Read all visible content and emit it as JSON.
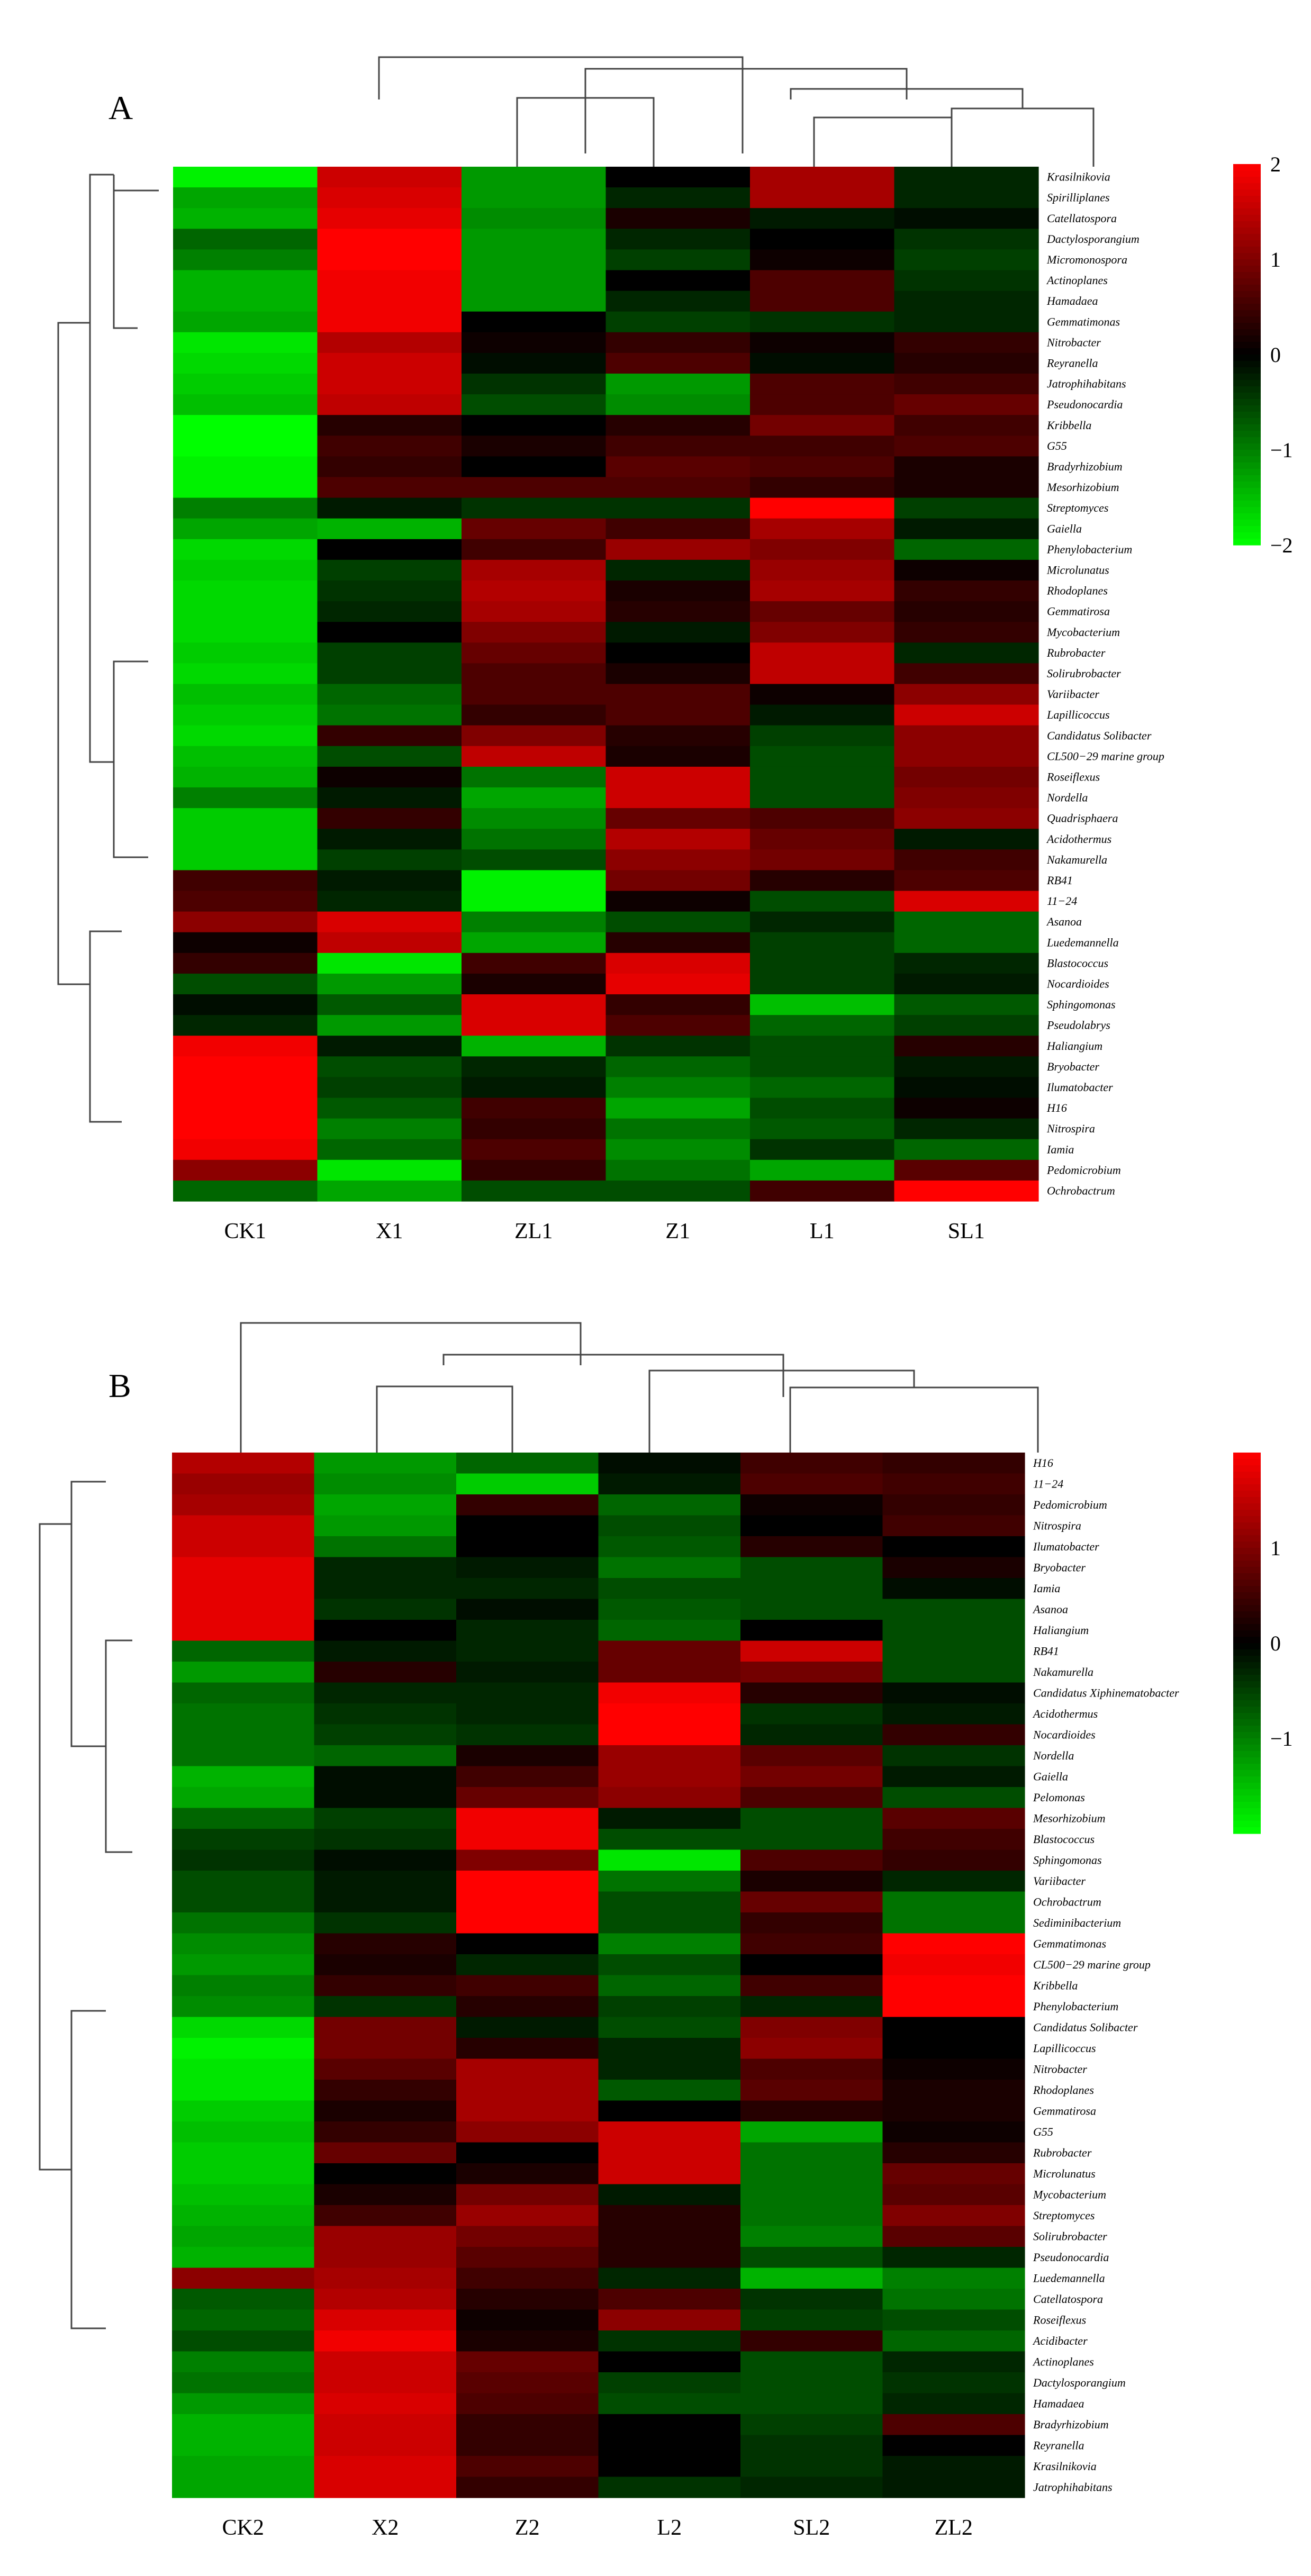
{
  "chart_data": [
    {
      "panel": "A",
      "type": "heatmap",
      "columns": [
        "CK1",
        "X1",
        "ZL1",
        "Z1",
        "L1",
        "SL1"
      ],
      "rows": [
        "Krasilnikovia",
        "Spirilliplanes",
        "Catellatospora",
        "Dactylosporangium",
        "Micromonospora",
        "Actinoplanes",
        "Hamadaea",
        "Gemmatimonas",
        "Nitrobacter",
        "Reyranella",
        "Jatrophihabitans",
        "Pseudonocardia",
        "Kribbella",
        "G55",
        "Bradyrhizobium",
        "Mesorhizobium",
        "Streptomyces",
        "Gaiella",
        "Phenylobacterium",
        "Microlunatus",
        "Rhodoplanes",
        "Gemmatirosa",
        "Mycobacterium",
        "Rubrobacter",
        "Solirubrobacter",
        "Variibacter",
        "Lapillicoccus",
        "Candidatus Solibacter",
        "CL500−29 marine group",
        "Roseiflexus",
        "Nordella",
        "Quadrisphaera",
        "Acidothermus",
        "Nakamurella",
        "RB41",
        "11−24",
        "Asanoa",
        "Luedemannella",
        "Blastococcus",
        "Nocardioides",
        "Sphingomonas",
        "Pseudolabrys",
        "Haliangium",
        "Bryobacter",
        "Ilumatobacter",
        "H16",
        "Nitrospira",
        "Iamia",
        "Pedomicrobium",
        "Ochrobactrum"
      ],
      "values": [
        [
          -1.9,
          1.6,
          -1.2,
          0.0,
          1.3,
          -0.3
        ],
        [
          -1.3,
          1.7,
          -1.2,
          -0.3,
          1.3,
          -0.3
        ],
        [
          -1.4,
          1.8,
          -1.1,
          0.2,
          -0.2,
          -0.1
        ],
        [
          -0.8,
          2.0,
          -1.2,
          -0.3,
          0.0,
          -0.4
        ],
        [
          -1.0,
          2.0,
          -1.2,
          -0.5,
          0.1,
          -0.5
        ],
        [
          -1.4,
          1.9,
          -1.2,
          0.0,
          0.6,
          -0.4
        ],
        [
          -1.4,
          1.9,
          -1.2,
          -0.3,
          0.6,
          -0.3
        ],
        [
          -1.3,
          1.9,
          0.0,
          -0.5,
          -0.4,
          -0.3
        ],
        [
          -1.8,
          1.4,
          0.1,
          0.4,
          0.1,
          0.4
        ],
        [
          -1.7,
          1.6,
          -0.1,
          0.6,
          -0.1,
          0.3
        ],
        [
          -1.6,
          1.6,
          -0.4,
          -1.2,
          0.6,
          0.5
        ],
        [
          -1.5,
          1.5,
          -0.6,
          -1.1,
          0.6,
          0.8
        ],
        [
          -2.0,
          0.3,
          0.0,
          0.3,
          0.9,
          0.5
        ],
        [
          -2.0,
          0.5,
          0.2,
          0.5,
          0.5,
          0.6
        ],
        [
          -1.9,
          0.4,
          0.0,
          0.7,
          0.6,
          0.2
        ],
        [
          -1.9,
          0.6,
          0.6,
          0.6,
          0.4,
          0.2
        ],
        [
          -1.0,
          -0.2,
          -0.4,
          -0.4,
          2.0,
          -0.5
        ],
        [
          -1.3,
          -1.4,
          0.8,
          0.5,
          1.3,
          -0.2
        ],
        [
          -1.7,
          0.0,
          0.5,
          1.2,
          1.0,
          -0.8
        ],
        [
          -1.6,
          -0.5,
          1.3,
          -0.3,
          1.2,
          0.1
        ],
        [
          -1.7,
          -0.4,
          1.4,
          0.2,
          1.3,
          0.4
        ],
        [
          -1.7,
          -0.3,
          1.3,
          0.3,
          0.8,
          0.3
        ],
        [
          -1.7,
          0.0,
          1.0,
          -0.2,
          1.0,
          0.4
        ],
        [
          -1.6,
          -0.5,
          0.8,
          0.0,
          1.5,
          -0.3
        ],
        [
          -1.7,
          -0.5,
          0.6,
          0.2,
          1.5,
          0.5
        ],
        [
          -1.5,
          -0.8,
          0.6,
          0.6,
          0.1,
          1.1
        ],
        [
          -1.6,
          -0.9,
          0.4,
          0.6,
          -0.2,
          1.6
        ],
        [
          -1.7,
          0.4,
          1.0,
          0.3,
          -0.5,
          1.1
        ],
        [
          -1.5,
          -0.6,
          1.5,
          0.2,
          -0.6,
          1.1
        ],
        [
          -1.4,
          0.1,
          -0.9,
          1.6,
          -0.6,
          0.9
        ],
        [
          -1.0,
          -0.2,
          -1.3,
          1.6,
          -0.6,
          1.0
        ],
        [
          -1.6,
          0.4,
          -1.1,
          0.8,
          0.6,
          1.1
        ],
        [
          -1.6,
          -0.2,
          -0.9,
          1.4,
          0.8,
          -0.2
        ],
        [
          -1.6,
          -0.5,
          -0.6,
          1.1,
          0.9,
          0.5
        ],
        [
          0.5,
          -0.2,
          -1.9,
          0.9,
          0.3,
          0.6
        ],
        [
          0.6,
          -0.3,
          -1.9,
          0.1,
          -0.6,
          1.7
        ],
        [
          1.1,
          1.7,
          -1.0,
          -0.6,
          -0.3,
          -0.8
        ],
        [
          0.1,
          1.5,
          -1.3,
          0.3,
          -0.5,
          -0.8
        ],
        [
          0.4,
          -1.8,
          0.5,
          1.7,
          -0.5,
          -0.3
        ],
        [
          -0.6,
          -1.2,
          0.2,
          1.8,
          -0.5,
          -0.2
        ],
        [
          -0.1,
          -0.7,
          1.7,
          0.4,
          -1.5,
          -0.7
        ],
        [
          -0.3,
          -1.2,
          1.7,
          0.6,
          -0.8,
          -0.5
        ],
        [
          1.9,
          -0.2,
          -1.4,
          -0.4,
          -0.6,
          0.3
        ],
        [
          2.0,
          -0.6,
          -0.3,
          -0.8,
          -0.6,
          -0.2
        ],
        [
          2.0,
          -0.5,
          -0.2,
          -1.0,
          -0.8,
          -0.1
        ],
        [
          2.0,
          -0.7,
          0.5,
          -1.3,
          -0.6,
          0.1
        ],
        [
          2.0,
          -1.0,
          0.4,
          -0.9,
          -0.7,
          -0.3
        ],
        [
          1.9,
          -0.8,
          0.6,
          -1.1,
          -0.4,
          -0.8
        ],
        [
          1.1,
          -1.8,
          0.4,
          -0.9,
          -1.3,
          0.7
        ],
        [
          -0.8,
          -1.3,
          -0.6,
          -0.6,
          0.5,
          2.0
        ]
      ],
      "color_range": [
        -2,
        2
      ],
      "legend_ticks": [
        2,
        1,
        0,
        -1,
        -2
      ],
      "legend_tick_labels": [
        "2",
        "1",
        "0",
        "−1",
        "−2"
      ],
      "colors": {
        "low": "#00ff00",
        "mid": "#000000",
        "high": "#ff0000"
      }
    },
    {
      "panel": "B",
      "type": "heatmap",
      "columns": [
        "CK2",
        "X2",
        "Z2",
        "L2",
        "SL2",
        "ZL2"
      ],
      "rows": [
        "H16",
        "11−24",
        "Pedomicrobium",
        "Nitrospira",
        "Ilumatobacter",
        "Bryobacter",
        "Iamia",
        "Asanoa",
        "Haliangium",
        "RB41",
        "Nakamurella",
        "Candidatus Xiphinematobacter",
        "Acidothermus",
        "Nocardioides",
        "Nordella",
        "Gaiella",
        "Pelomonas",
        "Mesorhizobium",
        "Blastococcus",
        "Sphingomonas",
        "Variibacter",
        "Ochrobactrum",
        "Sediminibacterium",
        "Gemmatimonas",
        "CL500−29 marine group",
        "Kribbella",
        "Phenylobacterium",
        "Candidatus Solibacter",
        "Lapillicoccus",
        "Nitrobacter",
        "Rhodoplanes",
        "Gemmatirosa",
        "G55",
        "Rubrobacter",
        "Microlunatus",
        "Mycobacterium",
        "Streptomyces",
        "Solirubrobacter",
        "Pseudonocardia",
        "Luedemannella",
        "Catellatospora",
        "Roseiflexus",
        "Acidibacter",
        "Actinoplanes",
        "Dactylosporangium",
        "Hamadaea",
        "Bradyrhizobium",
        "Reyranella",
        "Krasilnikovia",
        "Jatrophihabitans"
      ],
      "values": [
        [
          1.4,
          -1.2,
          -0.8,
          -0.1,
          0.5,
          0.4
        ],
        [
          1.2,
          -1.1,
          -1.6,
          -0.2,
          0.6,
          0.5
        ],
        [
          1.3,
          -1.3,
          0.4,
          -0.8,
          0.1,
          0.4
        ],
        [
          1.6,
          -1.2,
          0.0,
          -0.6,
          0.0,
          0.5
        ],
        [
          1.6,
          -0.9,
          0.0,
          -0.7,
          0.3,
          0.0
        ],
        [
          1.8,
          -0.3,
          -0.2,
          -0.9,
          -0.6,
          0.2
        ],
        [
          1.8,
          -0.3,
          -0.3,
          -0.6,
          -0.6,
          -0.1
        ],
        [
          1.8,
          -0.4,
          -0.1,
          -0.7,
          -0.6,
          -0.6
        ],
        [
          1.8,
          0.0,
          -0.3,
          -0.8,
          0.0,
          -0.6
        ],
        [
          -0.8,
          -0.2,
          -0.3,
          0.8,
          1.6,
          -0.6
        ],
        [
          -1.2,
          0.3,
          -0.2,
          0.8,
          0.9,
          -0.6
        ],
        [
          -0.8,
          -0.3,
          -0.3,
          1.9,
          0.3,
          -0.1
        ],
        [
          -0.9,
          -0.4,
          -0.3,
          2.0,
          -0.4,
          -0.2
        ],
        [
          -0.9,
          -0.5,
          -0.4,
          2.0,
          -0.3,
          0.4
        ],
        [
          -0.9,
          -0.8,
          0.2,
          1.2,
          0.7,
          -0.4
        ],
        [
          -1.4,
          -0.1,
          0.5,
          1.2,
          0.9,
          -0.2
        ],
        [
          -1.3,
          -0.1,
          0.8,
          1.1,
          0.6,
          -0.6
        ],
        [
          -0.8,
          -0.5,
          1.9,
          -0.2,
          -0.6,
          0.7
        ],
        [
          -0.5,
          -0.4,
          1.9,
          -0.6,
          -0.6,
          0.5
        ],
        [
          -0.4,
          -0.1,
          1.0,
          -1.8,
          0.6,
          0.4
        ],
        [
          -0.6,
          -0.2,
          2.0,
          -0.9,
          0.2,
          -0.3
        ],
        [
          -0.6,
          -0.2,
          2.0,
          -0.6,
          0.8,
          -0.9
        ],
        [
          -0.9,
          -0.4,
          2.0,
          -0.6,
          0.4,
          -0.9
        ],
        [
          -1.1,
          0.3,
          0.0,
          -1.0,
          0.5,
          2.0
        ],
        [
          -1.2,
          0.2,
          -0.3,
          -0.6,
          0.0,
          1.9
        ],
        [
          -1.0,
          0.4,
          0.5,
          -0.8,
          0.5,
          2.0
        ],
        [
          -1.1,
          -0.4,
          0.3,
          -0.5,
          -0.3,
          2.0
        ],
        [
          -1.7,
          0.9,
          -0.2,
          -0.6,
          1.0,
          0.0
        ],
        [
          -1.9,
          0.9,
          0.3,
          -0.3,
          1.1,
          0.0
        ],
        [
          -1.8,
          0.7,
          1.3,
          -0.3,
          0.6,
          0.1
        ],
        [
          -1.8,
          0.4,
          1.3,
          -0.7,
          0.7,
          0.2
        ],
        [
          -1.6,
          0.2,
          1.3,
          0.0,
          0.3,
          0.2
        ],
        [
          -1.5,
          0.4,
          1.1,
          1.6,
          -1.3,
          0.1
        ],
        [
          -1.6,
          0.8,
          0.0,
          1.6,
          -0.9,
          0.3
        ],
        [
          -1.6,
          0.0,
          0.2,
          1.6,
          -0.9,
          0.8
        ],
        [
          -1.5,
          0.2,
          0.9,
          -0.2,
          -0.9,
          0.7
        ],
        [
          -1.4,
          0.5,
          1.2,
          0.3,
          -0.9,
          1.0
        ],
        [
          -1.3,
          1.2,
          0.9,
          0.3,
          -1.0,
          0.7
        ],
        [
          -1.4,
          1.2,
          0.7,
          0.3,
          -0.6,
          -0.3
        ],
        [
          1.1,
          1.3,
          0.5,
          -0.3,
          -1.4,
          -1.0
        ],
        [
          -0.7,
          1.4,
          0.3,
          0.6,
          -0.4,
          -0.9
        ],
        [
          -0.8,
          1.7,
          0.1,
          1.1,
          -0.5,
          -0.6
        ],
        [
          -0.6,
          1.9,
          0.2,
          -0.4,
          0.4,
          -0.8
        ],
        [
          -1.0,
          1.6,
          0.8,
          0.0,
          -0.6,
          -0.3
        ],
        [
          -0.9,
          1.6,
          0.7,
          -0.5,
          -0.6,
          -0.4
        ],
        [
          -1.2,
          1.7,
          0.6,
          -0.6,
          -0.6,
          -0.3
        ],
        [
          -1.4,
          1.6,
          0.4,
          0.0,
          -0.5,
          0.6
        ],
        [
          -1.4,
          1.6,
          0.4,
          0.0,
          -0.4,
          0.0
        ],
        [
          -1.3,
          1.7,
          0.6,
          0.0,
          -0.4,
          -0.2
        ],
        [
          -1.3,
          1.7,
          0.4,
          -0.4,
          -0.3,
          -0.2
        ]
      ],
      "color_range": [
        -2,
        2
      ],
      "legend_ticks": [
        1,
        0,
        -1
      ],
      "legend_tick_labels": [
        "1",
        "0",
        "−1"
      ],
      "colors": {
        "low": "#00ff00",
        "mid": "#000000",
        "high": "#ff0000"
      }
    }
  ],
  "panels": {
    "A": {
      "letter": "A"
    },
    "B": {
      "letter": "B"
    }
  }
}
